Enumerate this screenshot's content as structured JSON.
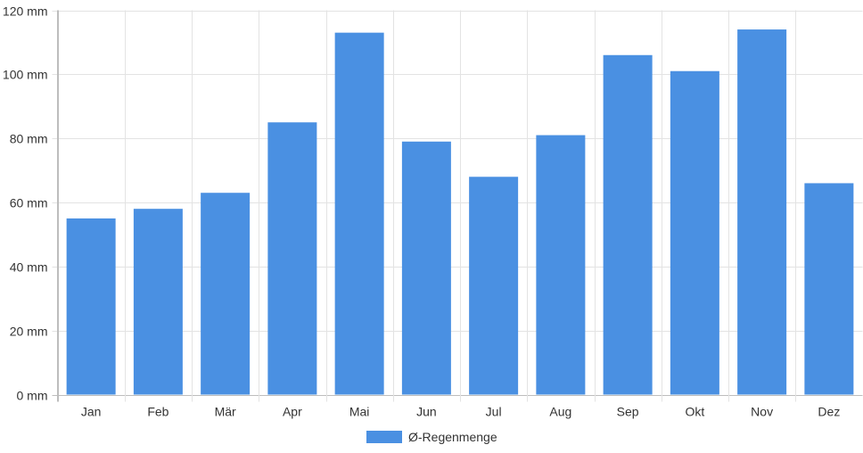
{
  "chart_data": {
    "type": "bar",
    "categories": [
      "Jan",
      "Feb",
      "Mär",
      "Apr",
      "Mai",
      "Jun",
      "Jul",
      "Aug",
      "Sep",
      "Okt",
      "Nov",
      "Dez"
    ],
    "series": [
      {
        "name": "Ø-Regenmenge",
        "color": "#4a90e2",
        "values": [
          55,
          58,
          63,
          85,
          113,
          79,
          68,
          81,
          106,
          101,
          114,
          66
        ]
      }
    ],
    "y_ticks": [
      "0 mm",
      "20 mm",
      "40 mm",
      "60 mm",
      "80 mm",
      "100 mm",
      "120 mm"
    ],
    "ylim": [
      0,
      120
    ],
    "unit": "mm",
    "grid": true,
    "legend_position": "bottom"
  }
}
